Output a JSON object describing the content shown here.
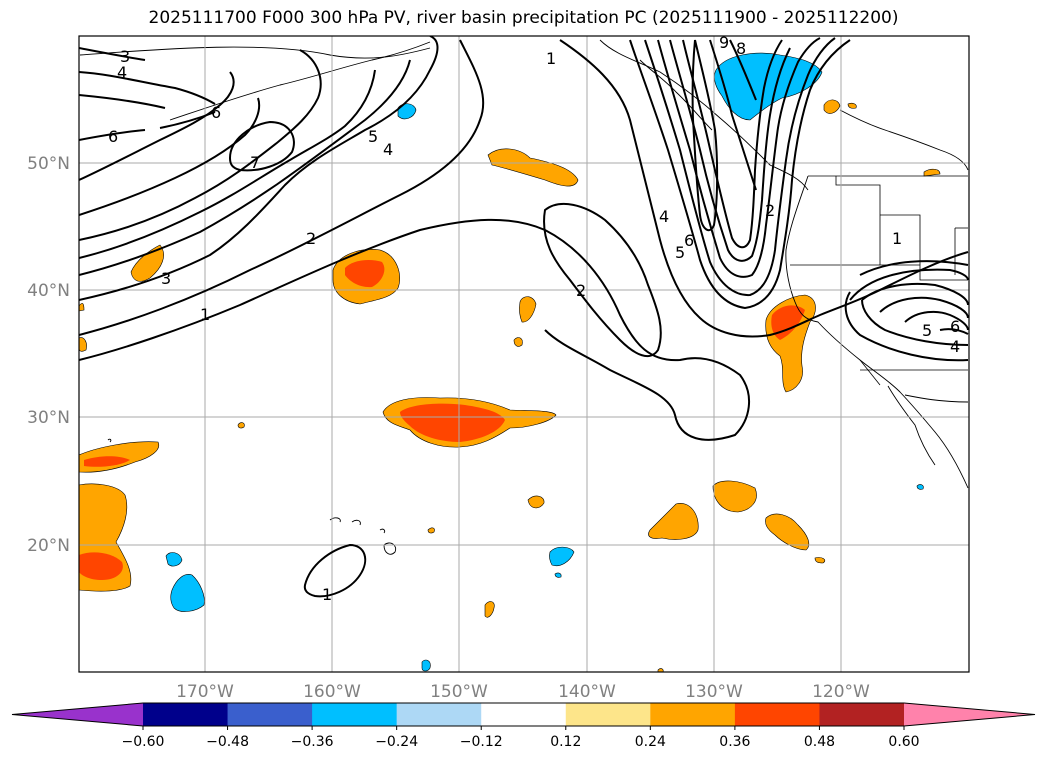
{
  "title": "2025111700 F000 300 hPa PV, river basin precipitation PC (2025111900 - 2025112200)",
  "map": {
    "lon_range": [
      -180,
      -110
    ],
    "lat_range": [
      10,
      60
    ],
    "lat_labels": [
      "50°N",
      "40°N",
      "30°N",
      "20°N"
    ],
    "lon_labels": [
      "170°W",
      "160°W",
      "150°W",
      "140°W",
      "130°W",
      "120°W"
    ],
    "gridline_color": "#aaaaaa"
  },
  "colorbar": {
    "ticks": [
      "−0.60",
      "−0.48",
      "−0.36",
      "−0.24",
      "−0.12",
      "0.12",
      "0.24",
      "0.36",
      "0.48",
      "0.60"
    ],
    "colors": [
      "#9932cc",
      "#00008b",
      "#3a5fcd",
      "#00bfff",
      "#add8f5",
      "#ffffff",
      "#fde58a",
      "#ffa500",
      "#ff4500",
      "#b22222",
      "#ff82ab"
    ]
  },
  "pv_contour_labels": [
    "3",
    "4",
    "6",
    "6",
    "7",
    "5",
    "4",
    "3",
    "2",
    "1",
    "1",
    "2",
    "4",
    "6",
    "5",
    "2",
    "9",
    "8",
    "1",
    "6",
    "4",
    "5",
    "1"
  ],
  "precip_color_positive": "#ffa500",
  "precip_color_strong": "#ff4500",
  "precip_color_negative": "#00bfff"
}
